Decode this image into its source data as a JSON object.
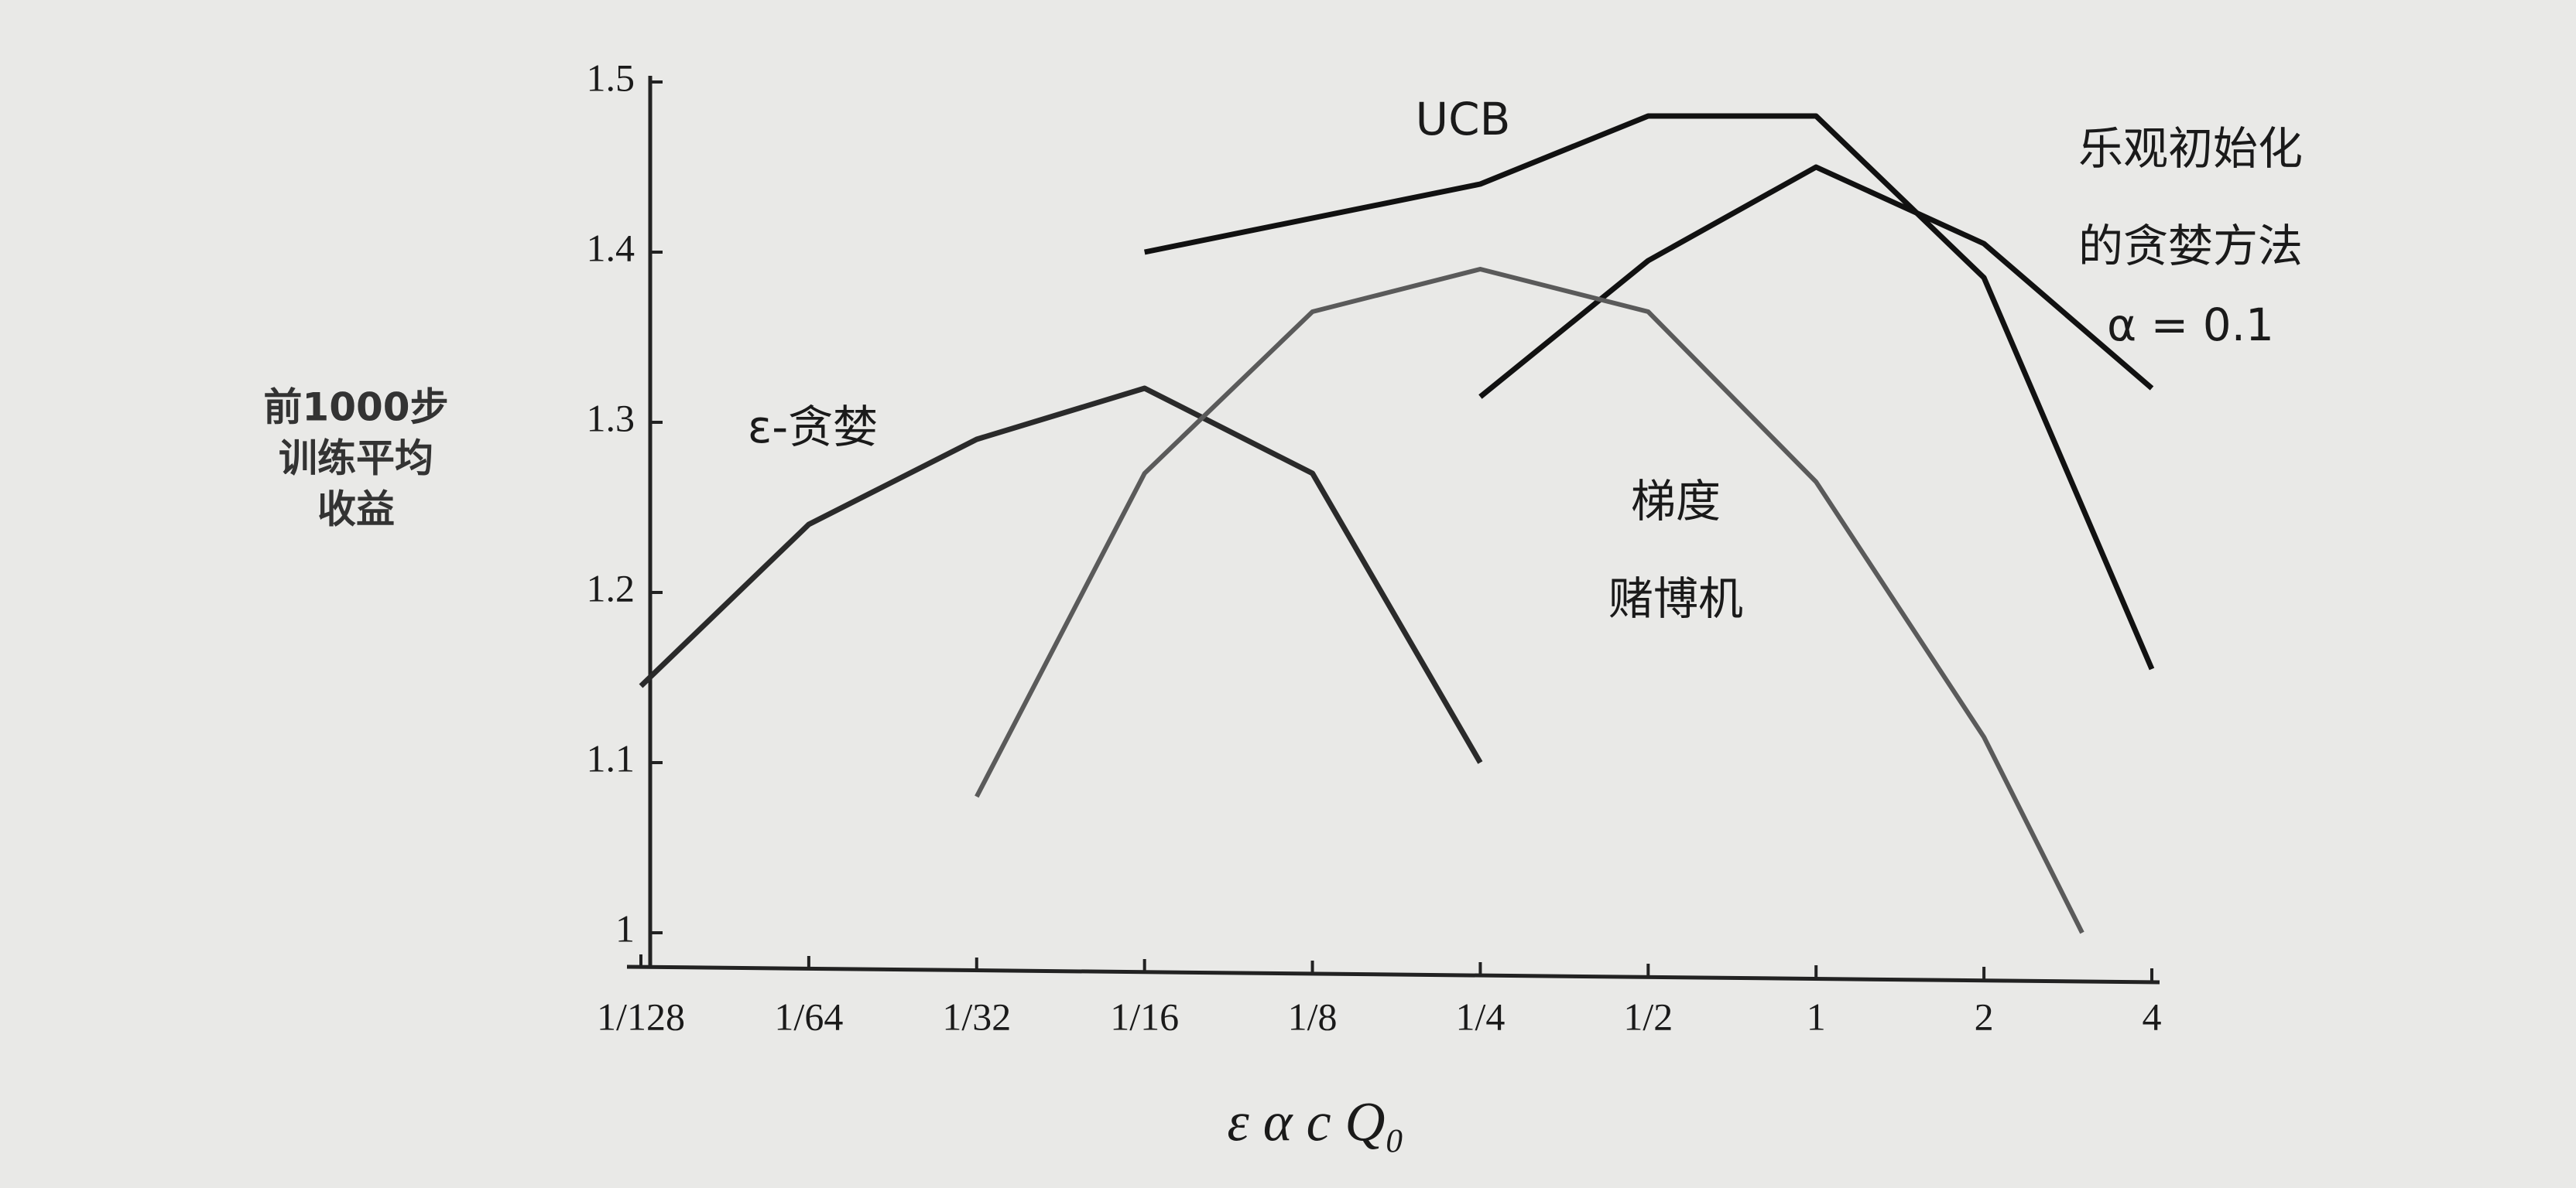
{
  "chart_data": {
    "type": "line",
    "y_label": [
      "前1000步",
      "训练平均",
      "收益"
    ],
    "x_label": "ε  α  c  Q₀",
    "xscale": "log2",
    "xlim": [
      0.0078125,
      4
    ],
    "xticks": [
      {
        "value": 0.0078125,
        "label": "1/128"
      },
      {
        "value": 0.015625,
        "label": "1/64"
      },
      {
        "value": 0.03125,
        "label": "1/32"
      },
      {
        "value": 0.0625,
        "label": "1/16"
      },
      {
        "value": 0.125,
        "label": "1/8"
      },
      {
        "value": 0.25,
        "label": "1/4"
      },
      {
        "value": 0.5,
        "label": "1/2"
      },
      1,
      2,
      4
    ],
    "ylim": [
      0.98,
      1.5
    ],
    "yticks": [
      1,
      1.1,
      1.2,
      1.3,
      1.4,
      1.5
    ],
    "series": [
      {
        "name": [
          "UCB"
        ],
        "color": "#111111",
        "x": [
          0.0625,
          0.25,
          0.5,
          1,
          2,
          4
        ],
        "values": [
          1.4,
          1.44,
          1.48,
          1.48,
          1.385,
          1.155
        ]
      },
      {
        "name": [
          "乐观初始化",
          "的贪婪方法"
        ],
        "note": "α = 0.1",
        "color": "#111111",
        "x": [
          0.25,
          0.5,
          1,
          2,
          4
        ],
        "values": [
          1.315,
          1.395,
          1.45,
          1.405,
          1.32
        ]
      },
      {
        "name": [
          "ε-贪婪"
        ],
        "color": "#2a2a2a",
        "x": [
          0.0078125,
          0.015625,
          0.03125,
          0.0625,
          0.125,
          0.25
        ],
        "values": [
          1.145,
          1.24,
          1.29,
          1.32,
          1.27,
          1.1
        ]
      },
      {
        "name": [
          "梯度",
          "赌博机"
        ],
        "color": "#5a5a5a",
        "x": [
          0.03125,
          0.0625,
          0.125,
          0.25,
          0.5,
          1,
          2,
          3
        ],
        "values": [
          1.08,
          1.27,
          1.365,
          1.39,
          1.365,
          1.265,
          1.115,
          1.0
        ]
      }
    ]
  }
}
